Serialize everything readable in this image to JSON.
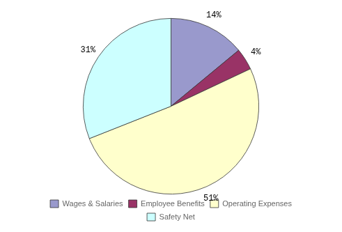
{
  "chart_data": {
    "type": "pie",
    "categories": [
      "Wages & Salaries",
      "Employee Benefits",
      "Operating Expenses",
      "Safety Net"
    ],
    "values": [
      14,
      4,
      51,
      31
    ],
    "value_labels": [
      "14%",
      "4%",
      "51%",
      "31%"
    ],
    "colors": [
      "#9999CC",
      "#993366",
      "#FFFFCC",
      "#CCFFFF"
    ],
    "data_labels": true,
    "legend": "bottom"
  }
}
